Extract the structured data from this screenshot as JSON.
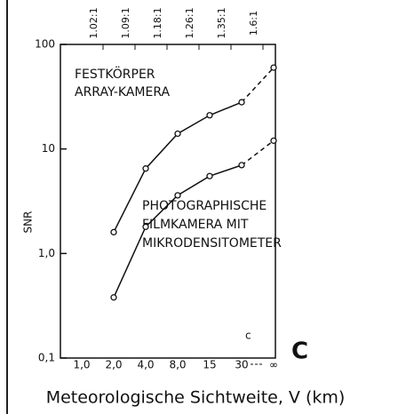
{
  "chart_data": {
    "type": "line",
    "y_axis_label": "SNR",
    "x_axis_label": "Meteorologische Sichtweite, V (km)",
    "categories": [
      "1,0",
      "2,0",
      "4,0",
      "8,0",
      "15",
      "30",
      "∞"
    ],
    "top_axis_labels": [
      null,
      "1.02:1",
      "1.09:1",
      "1.18:1",
      "1.26:1",
      "1.35:1",
      "1.6:1"
    ],
    "series": [
      {
        "name": "FESTKÖRPER ARRAY-KAMERA",
        "color": "#111111",
        "values": [
          null,
          1.6,
          6.5,
          14,
          21,
          28,
          60
        ]
      },
      {
        "name": "PHOTOGRAPHISCHE FILMKAMERA MIT MIKRODENSITOMETER",
        "color": "#111111",
        "values": [
          null,
          0.38,
          1.8,
          3.6,
          5.5,
          7,
          12
        ]
      }
    ],
    "annotations": [
      "FESTKÖRPER",
      "ARRAY-KAMERA",
      "PHOTOGRAPHISCHE",
      "FILMKAMERA MIT",
      "MIKRODENSITOMETER",
      "c",
      "C"
    ],
    "ylim": [
      0.1,
      100
    ],
    "log_y": true,
    "yticks": [
      {
        "value": 0.1,
        "label": "0,1"
      },
      {
        "value": 1,
        "label": "1,0"
      },
      10,
      100
    ],
    "dashed_last_segment": true,
    "grid": false
  }
}
